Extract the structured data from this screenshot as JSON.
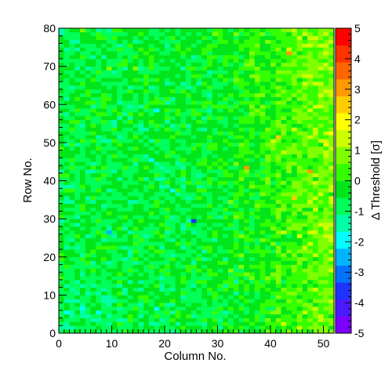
{
  "chart_data": {
    "type": "heatmap",
    "title": "",
    "xlabel": "Column No.",
    "ylabel": "Row No.",
    "zlabel": "Δ Threshold [σ]",
    "xlim": [
      0,
      52
    ],
    "ylim": [
      0,
      80
    ],
    "zlim": [
      -5,
      5
    ],
    "x_ticks": [
      0,
      10,
      20,
      30,
      40,
      50
    ],
    "y_ticks": [
      0,
      10,
      20,
      30,
      40,
      50,
      60,
      70,
      80
    ],
    "z_ticks": [
      -5,
      -4,
      -3,
      -2,
      -1,
      0,
      1,
      2,
      3,
      4,
      5
    ],
    "n_columns": 52,
    "n_rows": 80,
    "legend": "colorbar-right",
    "grid": false,
    "value_model": {
      "description": "Per-pixel threshold deviation; mostly near 0, rising toward +1 to +2 at high column numbers and upper rows, slightly negative (-0.5 to -1) in lower-left region, with scattered outliers.",
      "outliers": [
        {
          "col": 25,
          "row": 29,
          "value": -3.5
        },
        {
          "col": 9,
          "row": 26,
          "value": -2.6
        },
        {
          "col": 21,
          "row": 37,
          "value": -2.2
        },
        {
          "col": 17,
          "row": 45,
          "value": -2.0
        },
        {
          "col": 18,
          "row": 6,
          "value": -2.2
        },
        {
          "col": 18,
          "row": 58,
          "value": -2.0
        },
        {
          "col": 35,
          "row": 43,
          "value": 3.0
        },
        {
          "col": 43,
          "row": 73,
          "value": 3.0
        },
        {
          "col": 41,
          "row": 51,
          "value": 2.6
        },
        {
          "col": 44,
          "row": 35,
          "value": 2.5
        },
        {
          "col": 47,
          "row": 42,
          "value": 2.8
        }
      ]
    },
    "palette": [
      "#7b00ff",
      "#4c1aff",
      "#1f33ff",
      "#0073ff",
      "#00b3ff",
      "#00ffff",
      "#00ffa6",
      "#00ff59",
      "#00e61a",
      "#33ff00",
      "#80ff00",
      "#ccff00",
      "#ffff00",
      "#ffcc00",
      "#ff9900",
      "#ff6600",
      "#ff3300",
      "#ff0000"
    ]
  }
}
